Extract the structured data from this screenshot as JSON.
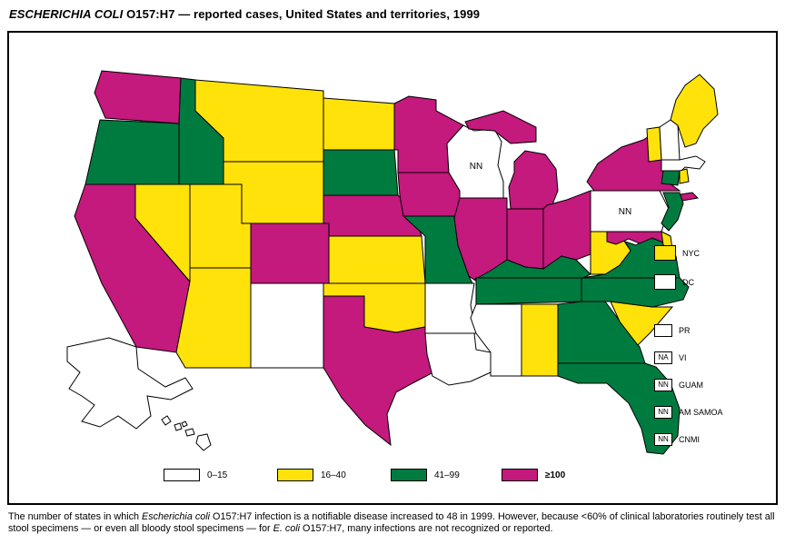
{
  "title": {
    "italic_part": "ESCHERICHIA COLI",
    "rest": " O157:H7 — reported cases, United States and territories, 1999"
  },
  "chart_data": {
    "type": "choropleth",
    "region": "United States and territories",
    "year": "1999",
    "categories": [
      {
        "id": "c0",
        "label": "0–15",
        "color": "#FFFFFF"
      },
      {
        "id": "c1",
        "label": "16–40",
        "color": "#FFE20A"
      },
      {
        "id": "c2",
        "label": "41–99",
        "color": "#007B40"
      },
      {
        "id": "c3",
        "label": "≥100",
        "color": "#C4197D"
      }
    ],
    "not_reported_code": "NN",
    "states": {
      "WA": "c3",
      "OR": "c2",
      "CA": "c3",
      "NV": "c1",
      "ID": "c2",
      "MT": "c1",
      "WY": "c1",
      "UT": "c1",
      "AZ": "c1",
      "CO": "c3",
      "NM": "c0",
      "ND": "c1",
      "SD": "c2",
      "NE": "c3",
      "KS": "c1",
      "OK": "c1",
      "TX": "c3",
      "MN": "c3",
      "IA": "c3",
      "MO": "c2",
      "AR": "c0",
      "LA": "c0",
      "WI": "NN",
      "IL": "c3",
      "MI": "c3",
      "IN": "c3",
      "OH": "c3",
      "KY": "c2",
      "TN": "c2",
      "MS": "c0",
      "AL": "c1",
      "GA": "c2",
      "FL": "c2",
      "SC": "c1",
      "NC": "c2",
      "VA": "c2",
      "WV": "c1",
      "MD": "c3",
      "DE": "c1",
      "NJ": "c2",
      "PA": "NN",
      "NY": "c3",
      "CT": "c2",
      "RI": "c1",
      "VT": "c1",
      "NH": "c0",
      "ME": "c1",
      "AK": "c0",
      "HI": "c0"
    },
    "state_labels_on_map": [
      {
        "state": "WI",
        "text": "NN"
      },
      {
        "state": "PA",
        "text": "NN"
      }
    ]
  },
  "territories": [
    {
      "label": "NYC",
      "category": "c1",
      "box_text": ""
    },
    {
      "label": "DC",
      "category": "c0",
      "box_text": ""
    },
    {
      "label": "PR",
      "category": "c0",
      "box_text": ""
    },
    {
      "label": "VI",
      "category": "c0",
      "box_text": "NA"
    },
    {
      "label": "GUAM",
      "category": "c0",
      "box_text": "NN"
    },
    {
      "label": "AM SAMOA",
      "category": "c0",
      "box_text": "NN"
    },
    {
      "label": "CNMI",
      "category": "c0",
      "box_text": "NN"
    }
  ],
  "footnote": {
    "segments": [
      {
        "text": "The number of states in which ",
        "italic": false
      },
      {
        "text": "Escherichia coli",
        "italic": true
      },
      {
        "text": " O157:H7 infection is a notifiable disease increased to 48 in 1999.  However, because <60% of clinical laboratories routinely test all stool specimens — or even all bloody stool specimens — for ",
        "italic": false
      },
      {
        "text": "E. coli",
        "italic": true
      },
      {
        "text": " O157:H7, many infections are not recognized or reported.",
        "italic": false
      }
    ]
  }
}
